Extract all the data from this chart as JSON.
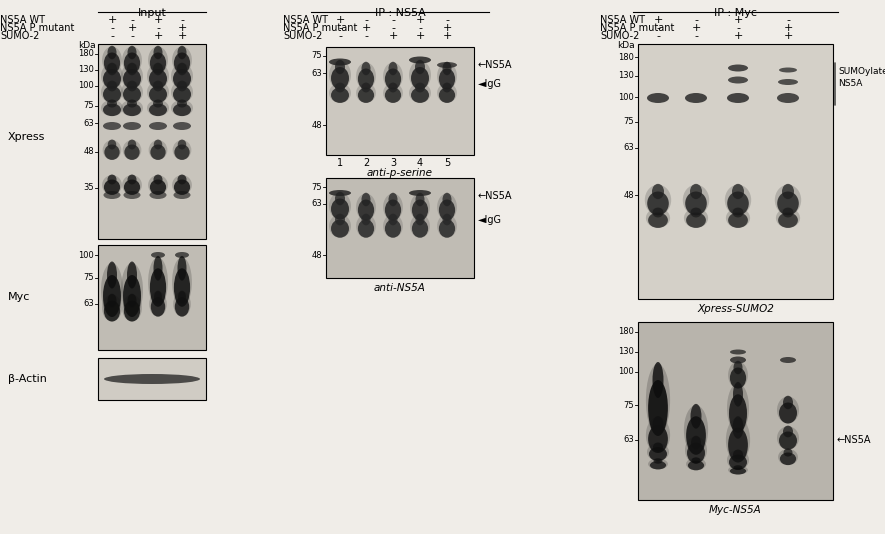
{
  "background_color": "#f0ede8",
  "title_input": "Input",
  "title_ip_ns5a": "IP : NS5A",
  "title_ip_myc": "IP : Myc",
  "row_labels": [
    "NS5A WT",
    "NS5A P mutant",
    "SUMO-2"
  ],
  "input_plus_minus": [
    [
      "+",
      "-",
      "+",
      "-"
    ],
    [
      "-",
      "+",
      "-",
      "+"
    ],
    [
      "-",
      "-",
      "+",
      "+"
    ]
  ],
  "ip_ns5a_plus_minus": [
    [
      "+",
      "-",
      "-",
      "+",
      "-"
    ],
    [
      "-",
      "+",
      "-",
      "-",
      "+"
    ],
    [
      "-",
      "-",
      "+",
      "+",
      "+"
    ]
  ],
  "ip_myc_plus_minus": [
    [
      "+",
      "-",
      "+",
      "-",
      "+"
    ],
    [
      "-",
      "+",
      "-",
      "-",
      "+"
    ],
    [
      "-",
      "-",
      "+",
      "+",
      "+"
    ]
  ],
  "label_xpress": "Xpress",
  "label_myc": "Myc",
  "label_beta_actin": "β-Actin",
  "label_anti_p_serine": "anti-p-serine",
  "label_anti_ns5a": "anti-NS5A",
  "label_xpress_sumo2": "Xpress-SUMO2",
  "label_myc_ns5a": "Myc-NS5A",
  "panel_bg_light": "#d8d4cc",
  "panel_bg_mid": "#c8c4bc",
  "panel_bg_dark": "#b0aca4"
}
